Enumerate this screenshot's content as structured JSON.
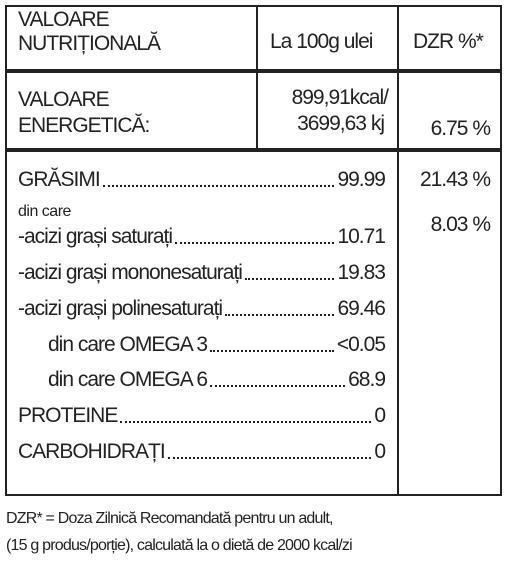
{
  "header": {
    "nutrient": [
      "VALOARE",
      "NUTRIȚIONALĂ"
    ],
    "per100": "La 100g ulei",
    "dzr": "DZR %*"
  },
  "energy": {
    "label": [
      "VALOARE",
      "ENERGETICĂ:"
    ],
    "value": [
      "899,91kcal/",
      "3699,63 kj"
    ],
    "dzr": "6.75 %"
  },
  "rows": [
    {
      "label": "GRĂSIMI",
      "value": "99.99",
      "dzr": "21.43 %"
    },
    {
      "label": "din care"
    },
    {
      "label": "-acizi grași saturați",
      "value": "10.71",
      "dzr": "8.03 %"
    },
    {
      "label": "-acizi grași mononesaturați",
      "value": "19.83"
    },
    {
      "label": "-acizi grași polinesaturați",
      "value": "69.46"
    },
    {
      "label": "din care OMEGA 3",
      "value": "<0.05"
    },
    {
      "label": "din care OMEGA 6",
      "value": "68.9"
    },
    {
      "label": "PROTEINE",
      "value": "0"
    },
    {
      "label": "CARBOHIDRAȚI",
      "value": "0"
    }
  ],
  "footnote": [
    "DZR* = Doza Zilnică Recomandată pentru un adult,",
    "(15 g produs/porție), calculată la o dietă de 2000 kcal/zi"
  ]
}
